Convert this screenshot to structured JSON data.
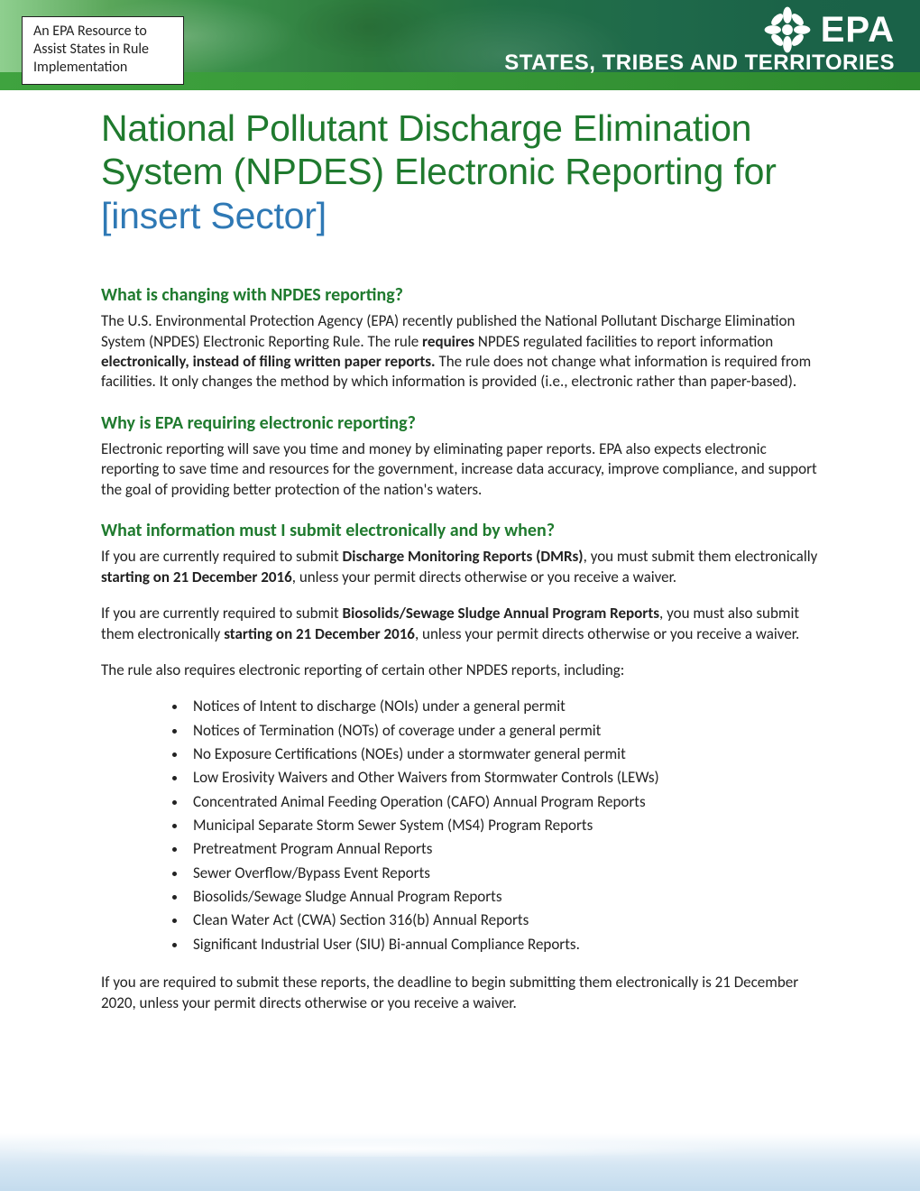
{
  "banner": {
    "callout_text": "An EPA Resource to Assist States in Rule Implementation",
    "logo_text": "EPA",
    "subtitle": "STATES, TRIBES AND TERRITORIES",
    "colors": {
      "gradient_start": "#8fcf8f",
      "gradient_end": "#1a6248",
      "stripe": "#2e8a2e",
      "text": "#ffffff"
    }
  },
  "title": {
    "green_part": "National Pollutant Discharge Elimination System (NPDES) Electronic Reporting for",
    "blue_part": "[insert Sector]",
    "green_color": "#1f7a2e",
    "blue_color": "#2f79b5",
    "fontsize": 41
  },
  "sections": {
    "s1": {
      "heading": "What is changing with NPDES reporting?",
      "p1_a": "The U.S. Environmental Protection Agency (EPA) recently published the National Pollutant Discharge Elimination System (NPDES) Electronic Reporting Rule. The rule ",
      "p1_b": "requires",
      "p1_c": " NPDES regulated facilities to report information ",
      "p1_d": "electronically, instead of filing written paper reports.",
      "p1_e": " The rule does not change what information is required from facilities. It only changes the method by which information is provided (i.e., electronic rather than paper-based)."
    },
    "s2": {
      "heading": "Why is EPA requiring electronic reporting?",
      "p1": "Electronic reporting will save you time and money by eliminating paper reports. EPA also expects electronic reporting to save time and resources for the government, increase data accuracy, improve compliance, and support the goal of providing better protection of the nation's waters."
    },
    "s3": {
      "heading": "What information must I submit electronically and by when?",
      "p1_a": "If you are currently required to submit ",
      "p1_b": "Discharge Monitoring Reports (DMRs)",
      "p1_c": ", you must submit them electronically ",
      "p1_d": "starting on 21 December 2016",
      "p1_e": ", unless your permit directs otherwise or you receive a waiver.",
      "p2_a": "If you are currently required to submit ",
      "p2_b": "Biosolids/Sewage Sludge Annual Program Reports",
      "p2_c": ", you must also submit them electronically ",
      "p2_d": "starting on 21 December 2016",
      "p2_e": ", unless your permit directs otherwise or you receive a waiver.",
      "p3": "The rule also requires electronic reporting of certain other NPDES reports, including:",
      "list": [
        "Notices of Intent to discharge (NOIs) under a general permit",
        "Notices of Termination (NOTs) of coverage under a general permit",
        "No Exposure Certifications (NOEs) under a stormwater general permit",
        "Low Erosivity Waivers and Other Waivers from Stormwater Controls (LEWs)",
        "Concentrated Animal Feeding Operation (CAFO) Annual Program Reports",
        "Municipal Separate Storm Sewer System (MS4) Program Reports",
        "Pretreatment Program Annual Reports",
        "Sewer Overflow/Bypass Event Reports",
        "Biosolids/Sewage Sludge Annual Program Reports",
        "Clean Water Act (CWA) Section 316(b) Annual Reports",
        "Significant Industrial User (SIU) Bi-annual Compliance Reports."
      ],
      "p4": "If you are required to submit these reports, the deadline to begin submitting them electronically is 21 December 2020, unless your permit directs otherwise or you receive a waiver."
    }
  },
  "style": {
    "heading_color": "#1f7a2e",
    "heading_fontsize": 20,
    "body_fontsize": 17,
    "body_color": "#222222",
    "page_background": "#ffffff"
  }
}
